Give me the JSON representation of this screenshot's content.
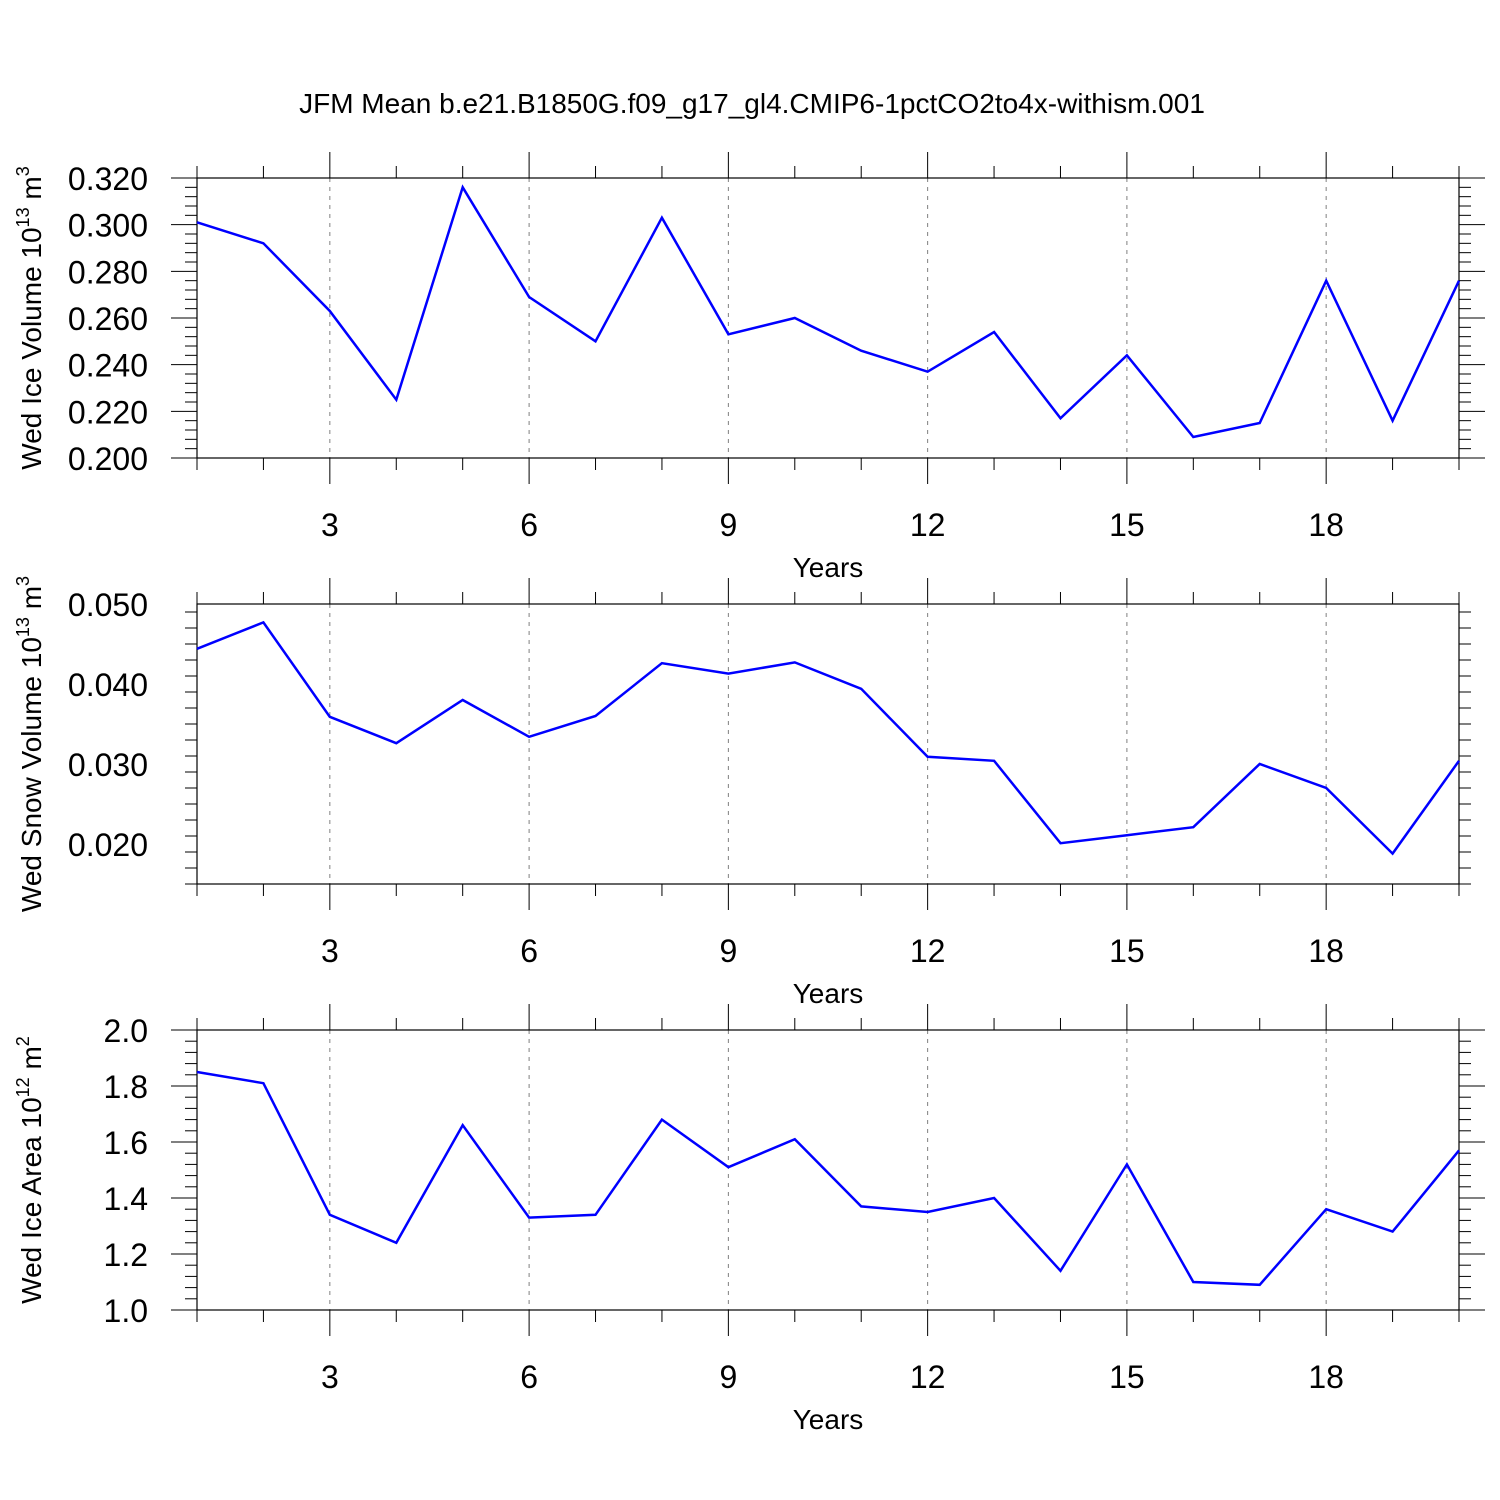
{
  "figure": {
    "title": "JFM Mean b.e21.B1850G.f09_g17_gl4.CMIP6-1pctCO2to4x-withism.001"
  },
  "colors": {
    "line": "#0000ff",
    "axis": "#000000",
    "grid": "#808080"
  },
  "chart_data": [
    {
      "type": "line",
      "ylabel_main": "Wed Ice Volume 10",
      "ylabel_exp": "13",
      "ylabel_unit": " m",
      "ylabel_unit_exp": "3",
      "xlabel": "Years",
      "xlim": [
        1,
        20
      ],
      "ylim": [
        0.2,
        0.32
      ],
      "x_ticks": [
        3,
        6,
        9,
        12,
        15,
        18
      ],
      "y_ticks": [
        "0.200",
        "0.220",
        "0.240",
        "0.260",
        "0.280",
        "0.300",
        "0.320"
      ],
      "grid": "vertical dashed at major x ticks",
      "x": [
        1,
        2,
        3,
        4,
        5,
        6,
        7,
        8,
        9,
        10,
        11,
        12,
        13,
        14,
        15,
        16,
        17,
        18,
        19,
        20
      ],
      "series": [
        {
          "values": [
            0.301,
            0.292,
            0.263,
            0.225,
            0.316,
            0.269,
            0.25,
            0.303,
            0.253,
            0.26,
            0.246,
            0.237,
            0.254,
            0.217,
            0.244,
            0.209,
            0.215,
            0.276,
            0.216,
            0.276
          ]
        }
      ]
    },
    {
      "type": "line",
      "ylabel_main": "Wed Snow Volume 10",
      "ylabel_exp": "13",
      "ylabel_unit": " m",
      "ylabel_unit_exp": "3",
      "xlabel": "Years",
      "xlim": [
        1,
        20
      ],
      "ylim": [
        0.015,
        0.05
      ],
      "x_ticks": [
        3,
        6,
        9,
        12,
        15,
        18
      ],
      "y_ticks": [
        "0.020",
        "0.030",
        "0.040",
        "0.050"
      ],
      "grid": "vertical dashed at major x ticks",
      "x": [
        1,
        2,
        3,
        4,
        5,
        6,
        7,
        8,
        9,
        10,
        11,
        12,
        13,
        14,
        15,
        16,
        17,
        18,
        19,
        20
      ],
      "series": [
        {
          "values": [
            0.0444,
            0.0477,
            0.0359,
            0.0326,
            0.038,
            0.0334,
            0.036,
            0.0426,
            0.0413,
            0.0427,
            0.0394,
            0.0309,
            0.0304,
            0.0201,
            0.0211,
            0.0221,
            0.03,
            0.027,
            0.0188,
            0.0304
          ]
        }
      ]
    },
    {
      "type": "line",
      "ylabel_main": "Wed Ice Area 10",
      "ylabel_exp": "12",
      "ylabel_unit": " m",
      "ylabel_unit_exp": "2",
      "xlabel": "Years",
      "xlim": [
        1,
        20
      ],
      "ylim": [
        1.0,
        2.0
      ],
      "x_ticks": [
        3,
        6,
        9,
        12,
        15,
        18
      ],
      "y_ticks": [
        "1.0",
        "1.2",
        "1.4",
        "1.6",
        "1.8",
        "2.0"
      ],
      "grid": "vertical dashed at major x ticks",
      "x": [
        1,
        2,
        3,
        4,
        5,
        6,
        7,
        8,
        9,
        10,
        11,
        12,
        13,
        14,
        15,
        16,
        17,
        18,
        19,
        20
      ],
      "series": [
        {
          "values": [
            1.85,
            1.81,
            1.34,
            1.24,
            1.66,
            1.33,
            1.34,
            1.68,
            1.51,
            1.61,
            1.37,
            1.35,
            1.4,
            1.14,
            1.52,
            1.1,
            1.09,
            1.36,
            1.28,
            1.57
          ]
        }
      ]
    }
  ]
}
